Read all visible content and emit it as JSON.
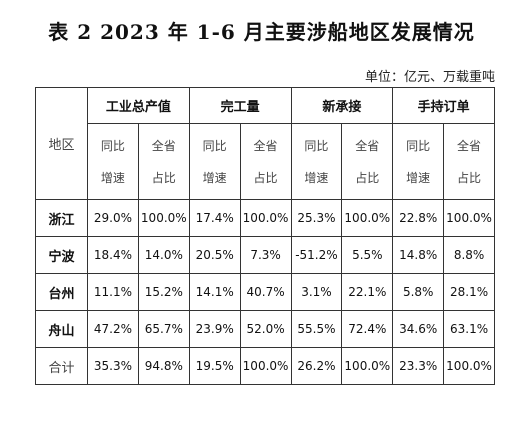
{
  "title": "表 2   2023 年 1-6 月主要涉船地区发展情况",
  "unit": "单位：亿元、万载重吨",
  "table": {
    "region_header": "地区",
    "groups": [
      "工业总产值",
      "完工量",
      "新承接",
      "手持订单"
    ],
    "sub_headers": [
      {
        "line1": "同比",
        "line2": "增速"
      },
      {
        "line1": "全省",
        "line2": "占比"
      },
      {
        "line1": "同比",
        "line2": "增速"
      },
      {
        "line1": "全省",
        "line2": "占比"
      },
      {
        "line1": "同比",
        "line2": "增速"
      },
      {
        "line1": "全省",
        "line2": "占比"
      },
      {
        "line1": "同比",
        "line2": "增速"
      },
      {
        "line1": "全省",
        "line2": "占比"
      }
    ],
    "rows": [
      {
        "region": "浙江",
        "values": [
          "29.0%",
          "100.0%",
          "17.4%",
          "100.0%",
          "25.3%",
          "100.0%",
          "22.8%",
          "100.0%"
        ]
      },
      {
        "region": "宁波",
        "values": [
          "18.4%",
          "14.0%",
          "20.5%",
          "7.3%",
          "-51.2%",
          "5.5%",
          "14.8%",
          "8.8%"
        ]
      },
      {
        "region": "台州",
        "values": [
          "11.1%",
          "15.2%",
          "14.1%",
          "40.7%",
          "3.1%",
          "22.1%",
          "5.8%",
          "28.1%"
        ]
      },
      {
        "region": "舟山",
        "values": [
          "47.2%",
          "65.7%",
          "23.9%",
          "52.0%",
          "55.5%",
          "72.4%",
          "34.6%",
          "63.1%"
        ]
      },
      {
        "region": "合计",
        "values": [
          "35.3%",
          "94.8%",
          "19.5%",
          "100.0%",
          "26.2%",
          "100.0%",
          "23.3%",
          "100.0%"
        ]
      }
    ]
  }
}
